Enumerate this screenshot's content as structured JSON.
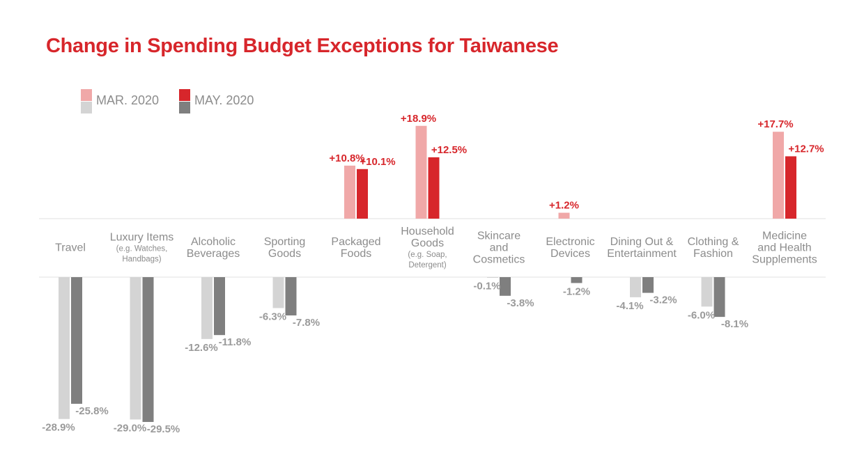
{
  "chart_data": {
    "type": "bar",
    "title": "Change in Spending Budget Exceptions for Taiwanese",
    "xlabel": "",
    "ylabel": "",
    "ylim": [
      -30,
      20
    ],
    "legend_position": "top-left",
    "categories": [
      {
        "lines": [
          "Travel"
        ],
        "sub": []
      },
      {
        "lines": [
          "Luxury Items"
        ],
        "sub": [
          "(e.g. Watches,",
          "Handbags)"
        ]
      },
      {
        "lines": [
          "Alcoholic",
          "Beverages"
        ],
        "sub": []
      },
      {
        "lines": [
          "Sporting",
          "Goods"
        ],
        "sub": []
      },
      {
        "lines": [
          "Packaged",
          "Foods"
        ],
        "sub": []
      },
      {
        "lines": [
          "Household",
          "Goods"
        ],
        "sub": [
          "(e.g. Soap,",
          "Detergent)"
        ]
      },
      {
        "lines": [
          "Skincare",
          "and",
          "Cosmetics"
        ],
        "sub": []
      },
      {
        "lines": [
          "Electronic",
          "Devices"
        ],
        "sub": []
      },
      {
        "lines": [
          "Dining Out &",
          "Entertainment"
        ],
        "sub": []
      },
      {
        "lines": [
          "Clothing &",
          "Fashion"
        ],
        "sub": []
      },
      {
        "lines": [
          "Medicine",
          "and Health",
          "Supplements"
        ],
        "sub": []
      }
    ],
    "series": [
      {
        "name": "MAR. 2020",
        "positive_color": "#f0a8a8",
        "negative_color": "#d4d4d4",
        "values": [
          -28.9,
          -29.0,
          -12.6,
          -6.3,
          10.8,
          18.9,
          -0.1,
          1.2,
          -4.1,
          -6.0,
          17.7
        ],
        "labels": [
          "-28.9%",
          "-29.0%",
          "-12.6%",
          "-6.3%",
          "+10.8%",
          "+18.9%",
          "-0.1%",
          "+1.2%",
          "-4.1%",
          "-6.0%",
          "+17.7%"
        ]
      },
      {
        "name": "MAY. 2020",
        "positive_color": "#d7262b",
        "negative_color": "#7f7f7f",
        "values": [
          -25.8,
          -29.5,
          -11.8,
          -7.8,
          10.1,
          12.5,
          -3.8,
          -1.2,
          -3.2,
          -8.1,
          12.7
        ],
        "labels": [
          "-25.8%",
          "-29.5%",
          "-11.8%",
          "-7.8%",
          "+10.1%",
          "+12.5%",
          "-3.8%",
          "-1.2%",
          "-3.2%",
          "-8.1%",
          "+12.7%"
        ]
      }
    ]
  },
  "legend": {
    "items": [
      {
        "label": "MAR. 2020"
      },
      {
        "label": "MAY. 2020"
      }
    ]
  }
}
